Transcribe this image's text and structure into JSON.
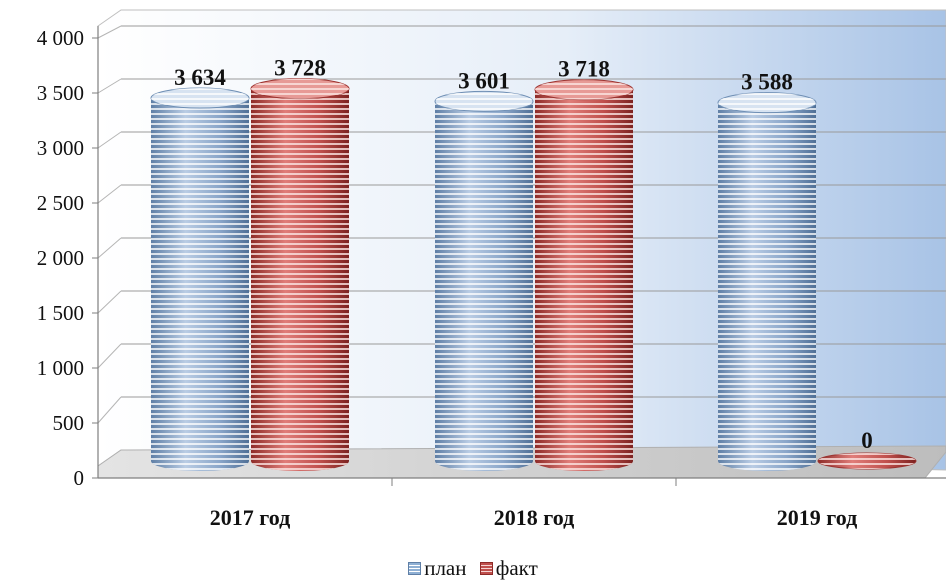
{
  "chart_data": {
    "type": "bar",
    "title": "",
    "categories": [
      "2017 год",
      "2018 год",
      "2019 год"
    ],
    "series": [
      {
        "name": "план",
        "values": [
          3634,
          3601,
          3588
        ],
        "labels": [
          "3 634",
          "3 601",
          "3 588"
        ],
        "color": "#8fb0d4",
        "stripe": "#ffffff"
      },
      {
        "name": "факт",
        "values": [
          3728,
          3718,
          0
        ],
        "labels": [
          "3 728",
          "3 718",
          "0"
        ],
        "color": "#c0504d",
        "stripe": "#f6d6d4"
      }
    ],
    "ylim": [
      0,
      4000
    ],
    "yticks": [
      0,
      500,
      1000,
      1500,
      2000,
      2500,
      3000,
      3500,
      4000
    ],
    "ytick_labels": [
      "0",
      "500",
      "1 000",
      "1 500",
      "2 000",
      "2 500",
      "3 000",
      "3 500",
      "4 000"
    ],
    "xlabel": "",
    "ylabel": "",
    "grid": true,
    "legend": "bottom",
    "style": "3d-cylinder"
  }
}
